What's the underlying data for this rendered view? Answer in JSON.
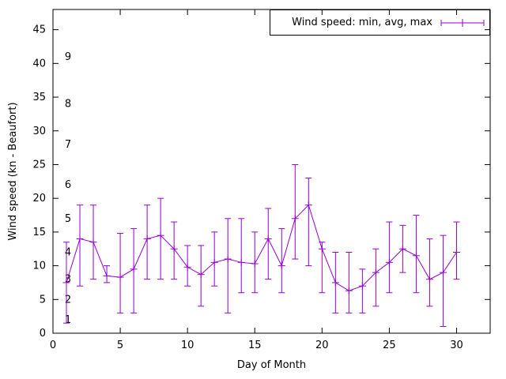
{
  "chart_data": {
    "type": "line",
    "legend_label": "Wind speed: min, avg, max",
    "xlabel": "Day of Month",
    "ylabel": "Wind speed (kn - Beaufort)",
    "xlim": [
      0,
      32.5
    ],
    "ylim": [
      0,
      48
    ],
    "x_ticks": [
      0,
      5,
      10,
      15,
      20,
      25,
      30
    ],
    "y_ticks": [
      0,
      5,
      10,
      15,
      20,
      25,
      30,
      35,
      40,
      45
    ],
    "beaufort_ticks": [
      {
        "bft": "1",
        "kn": 2
      },
      {
        "bft": "2",
        "kn": 5
      },
      {
        "bft": "3",
        "kn": 8
      },
      {
        "bft": "4",
        "kn": 12
      },
      {
        "bft": "5",
        "kn": 17
      },
      {
        "bft": "6",
        "kn": 22
      },
      {
        "bft": "7",
        "kn": 28
      },
      {
        "bft": "8",
        "kn": 34
      },
      {
        "bft": "9",
        "kn": 41
      }
    ],
    "color": "#9400d3",
    "axis_color": "#000000",
    "grid": false,
    "legend_position": "top-right",
    "series": [
      {
        "name": "Wind speed: min, avg, max",
        "x": [
          1,
          2,
          3,
          4,
          5,
          6,
          7,
          8,
          9,
          10,
          11,
          12,
          13,
          14,
          15,
          16,
          17,
          18,
          19,
          20,
          21,
          22,
          23,
          24,
          25,
          26,
          27,
          28,
          29,
          30
        ],
        "avg": [
          7.5,
          14,
          13.5,
          8.5,
          8.3,
          9.5,
          14,
          14.5,
          12.5,
          9.8,
          8.7,
          10.5,
          11,
          10.5,
          10.3,
          14,
          10,
          17,
          19,
          12.5,
          7.5,
          6.3,
          7,
          9,
          10.5,
          12.5,
          11.5,
          8,
          9,
          12
        ],
        "min": [
          1.5,
          7,
          8,
          7.5,
          3,
          3,
          8,
          8,
          8,
          7,
          4,
          7,
          3,
          6,
          6,
          8,
          6,
          11,
          10,
          6,
          3,
          3,
          3,
          4,
          6,
          9,
          6,
          4,
          1,
          8
        ],
        "max": [
          13.5,
          19,
          19,
          10,
          14.8,
          15.5,
          19,
          20,
          16.5,
          13,
          13,
          15,
          17,
          17,
          15,
          18.5,
          15.5,
          25,
          23,
          13.5,
          12,
          12,
          9.5,
          12.5,
          16.5,
          16,
          17.5,
          14,
          14.5,
          16.5
        ]
      }
    ]
  }
}
